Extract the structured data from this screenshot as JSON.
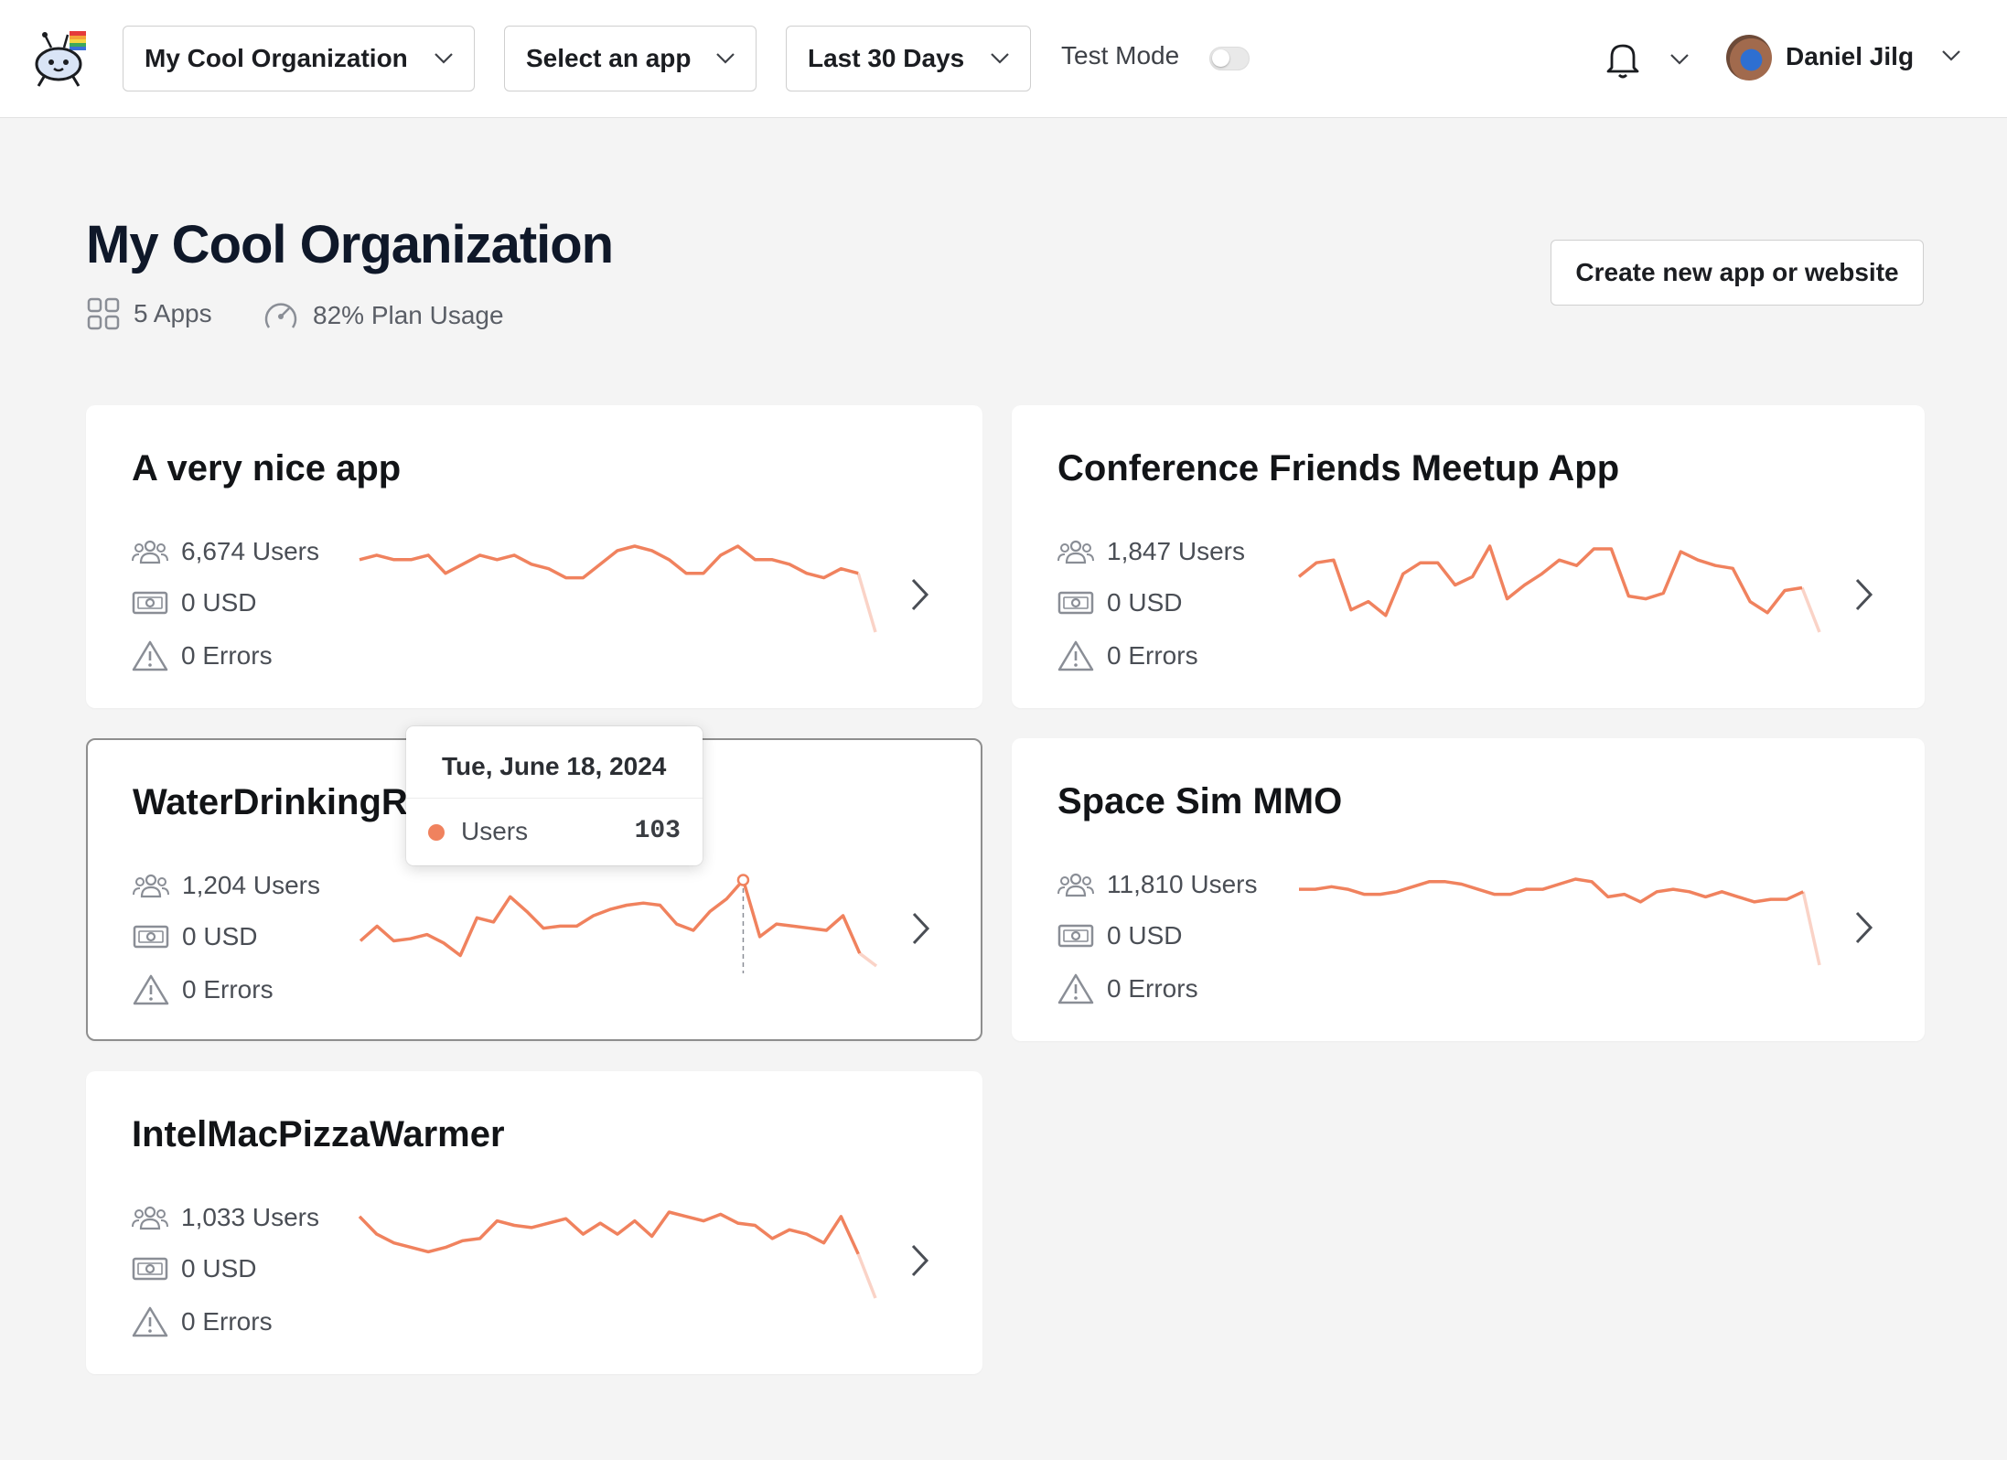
{
  "header": {
    "organization_select": "My Cool Organization",
    "app_select": "Select an app",
    "range_select": "Last 30 Days",
    "test_mode_label": "Test Mode",
    "test_mode_on": false,
    "user_name": "Daniel Jilg"
  },
  "page": {
    "title": "My Cool Organization",
    "apps_count": "5 Apps",
    "plan_usage": "82% Plan Usage",
    "create_button": "Create new app or website"
  },
  "colors": {
    "accent": "#f0825e",
    "title": "#0f1829"
  },
  "apps": [
    {
      "name": "A very nice app",
      "users": "6,674 Users",
      "revenue": "0 USD",
      "errors": "0 Errors",
      "series": [
        36,
        37,
        36,
        36,
        37,
        33,
        35,
        37,
        36,
        37,
        35,
        34,
        32,
        32,
        35,
        38,
        39,
        38,
        36,
        33,
        33,
        37,
        39,
        36,
        36,
        35,
        33,
        32,
        34,
        33,
        20
      ]
    },
    {
      "name": "Conference Friends Meetup App",
      "users": "1,847 Users",
      "revenue": "0 USD",
      "errors": "0 Errors",
      "series": [
        30,
        35,
        36,
        18,
        21,
        16,
        31,
        35,
        35,
        27,
        30,
        41,
        22,
        27,
        31,
        36,
        34,
        40,
        40,
        23,
        22,
        24,
        39,
        36,
        34,
        33,
        21,
        17,
        25,
        26,
        10
      ]
    },
    {
      "name": "WaterDrinkingReminder",
      "users": "1,204 Users",
      "revenue": "0 USD",
      "errors": "0 Errors",
      "series": [
        50,
        57,
        50,
        51,
        53,
        49,
        43,
        61,
        59,
        71,
        64,
        56,
        57,
        57,
        62,
        65,
        67,
        68,
        67,
        58,
        55,
        64,
        70,
        79,
        52,
        58,
        57,
        56,
        55,
        62,
        44,
        38
      ]
    },
    {
      "name": "Space Sim MMO",
      "users": "11,810 Users",
      "revenue": "0 USD",
      "errors": "0 Errors",
      "series": [
        40,
        40,
        41,
        40,
        38,
        38,
        39,
        41,
        43,
        43,
        42,
        40,
        38,
        38,
        40,
        40,
        42,
        44,
        43,
        37,
        38,
        35,
        39,
        40,
        39,
        37,
        39,
        37,
        35,
        36,
        36,
        39,
        10
      ]
    },
    {
      "name": "IntelMacPizzaWarmer",
      "users": "1,033 Users",
      "revenue": "0 USD",
      "errors": "0 Errors",
      "series": [
        60,
        52,
        48,
        46,
        44,
        46,
        49,
        50,
        58,
        56,
        55,
        57,
        59,
        52,
        57,
        52,
        58,
        51,
        62,
        60,
        58,
        61,
        57,
        56,
        50,
        54,
        52,
        48,
        60,
        43,
        23
      ]
    }
  ],
  "tooltip": {
    "date": "Tue, June 18, 2024",
    "label": "Users",
    "value": "103",
    "index": 23
  }
}
